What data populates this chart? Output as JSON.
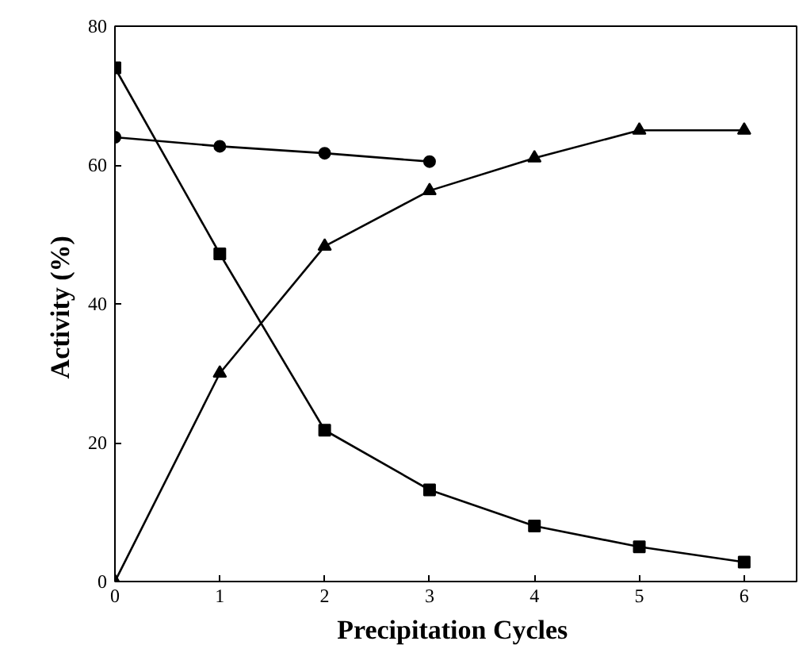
{
  "chart_data": {
    "type": "line",
    "xlabel": "Precipitation  Cycles",
    "ylabel": "Activity  (%)",
    "xlim": [
      0,
      6.5
    ],
    "xticks": [
      0,
      1,
      2,
      3,
      4,
      5,
      6
    ],
    "ylim": [
      0,
      80
    ],
    "yticks": [
      0,
      20,
      40,
      60,
      80
    ],
    "grid": false,
    "line_style": "solid",
    "series": [
      {
        "x": [
          0,
          1,
          2,
          3
        ],
        "values": [
          64,
          62.7,
          61.7,
          60.5
        ],
        "color": "#000000",
        "marker": "circle"
      },
      {
        "x": [
          0,
          1,
          2,
          3,
          4,
          5,
          6
        ],
        "values": [
          74,
          47.2,
          21.8,
          13.2,
          8,
          5,
          2.8
        ],
        "color": "#000000",
        "marker": "square"
      },
      {
        "x": [
          0,
          1,
          2,
          3,
          4,
          5,
          6
        ],
        "values": [
          0,
          30,
          48.3,
          56.3,
          61,
          65,
          65
        ],
        "color": "#000000",
        "marker": "triangle"
      }
    ]
  }
}
